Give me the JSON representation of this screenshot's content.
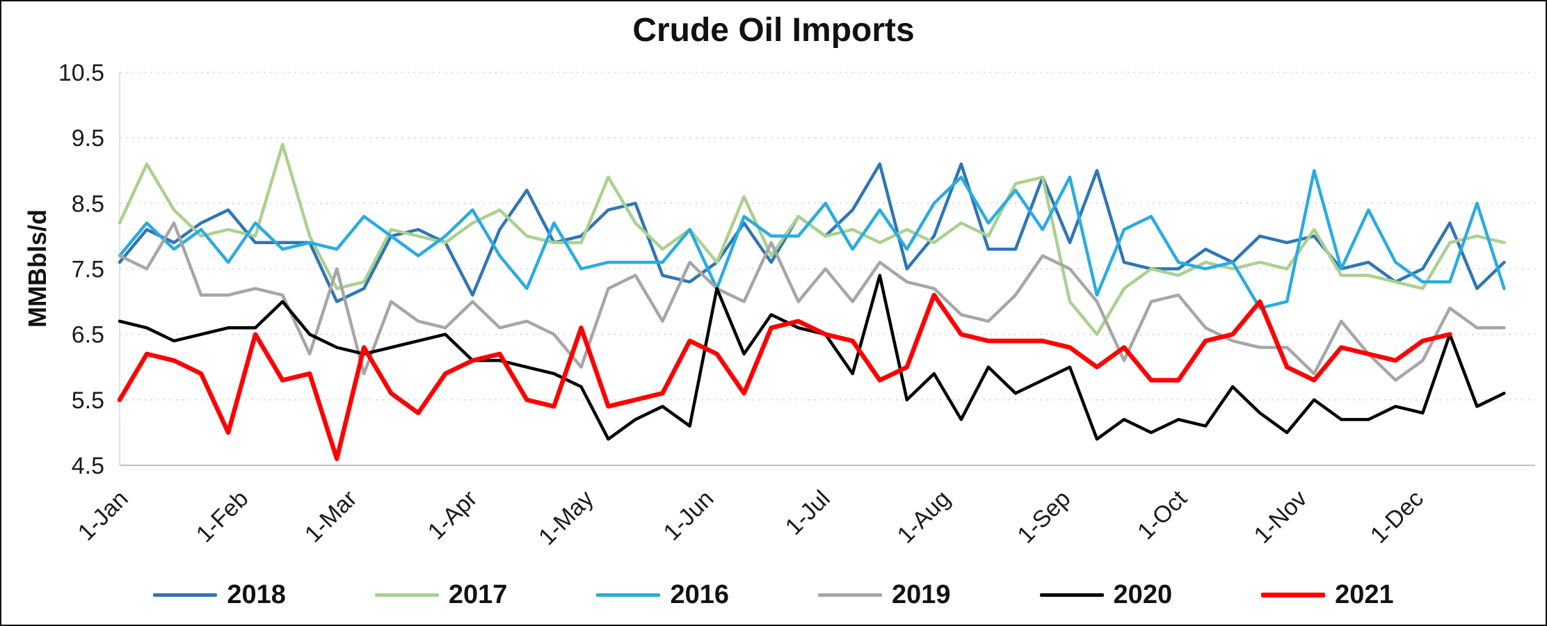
{
  "chart_data": {
    "type": "line",
    "title": "Crude Oil Imports",
    "ylabel": "MMBbls/d",
    "xlabel": "",
    "ylim": [
      4.5,
      10.5
    ],
    "ytick_step": 1.0,
    "ytick_labels": [
      "4.5",
      "5.5",
      "6.5",
      "7.5",
      "8.5",
      "9.5",
      "10.5"
    ],
    "grid": "horizontal-dotted",
    "legend_position": "bottom",
    "x_frequency": "weekly",
    "xticks": [
      {
        "label": "1-Jan",
        "day": 0
      },
      {
        "label": "1-Feb",
        "day": 31
      },
      {
        "label": "1-Mar",
        "day": 59
      },
      {
        "label": "1-Apr",
        "day": 90
      },
      {
        "label": "1-May",
        "day": 120
      },
      {
        "label": "1-Jun",
        "day": 151
      },
      {
        "label": "1-Jul",
        "day": 181
      },
      {
        "label": "1-Aug",
        "day": 212
      },
      {
        "label": "1-Sep",
        "day": 243
      },
      {
        "label": "1-Oct",
        "day": 273
      },
      {
        "label": "1-Nov",
        "day": 304
      },
      {
        "label": "1-Dec",
        "day": 334
      }
    ],
    "series": [
      {
        "name": "2018",
        "color": "#2E75B6",
        "line_width": 4.5,
        "start_week": 0,
        "values": [
          7.6,
          8.1,
          7.9,
          8.2,
          8.4,
          7.9,
          7.9,
          7.9,
          7.0,
          7.2,
          8.0,
          8.1,
          7.9,
          7.1,
          8.1,
          8.7,
          7.9,
          8.0,
          8.4,
          8.5,
          7.4,
          7.3,
          7.6,
          8.2,
          7.6,
          8.3,
          8.0,
          8.4,
          9.1,
          7.5,
          8.0,
          9.1,
          7.8,
          7.8,
          8.9,
          7.9,
          9.0,
          7.6,
          7.5,
          7.5,
          7.8,
          7.6,
          8.0,
          7.9,
          8.0,
          7.5,
          7.6,
          7.3,
          7.5,
          8.2,
          7.2,
          7.6
        ]
      },
      {
        "name": "2017",
        "color": "#A9D18E",
        "line_width": 4.5,
        "start_week": 0,
        "values": [
          8.2,
          9.1,
          8.4,
          8.0,
          8.1,
          8.0,
          9.4,
          8.0,
          7.2,
          7.3,
          8.1,
          8.0,
          7.9,
          8.2,
          8.4,
          8.0,
          7.9,
          7.9,
          8.9,
          8.2,
          7.8,
          8.1,
          7.6,
          8.6,
          7.7,
          8.3,
          8.0,
          8.1,
          7.9,
          8.1,
          7.9,
          8.2,
          8.0,
          8.8,
          8.9,
          7.0,
          6.5,
          7.2,
          7.5,
          7.4,
          7.6,
          7.5,
          7.6,
          7.5,
          8.1,
          7.4,
          7.4,
          7.3,
          7.2,
          7.9,
          8.0,
          7.9
        ]
      },
      {
        "name": "2016",
        "color": "#29ABE2",
        "line_width": 4.5,
        "start_week": 0,
        "values": [
          7.7,
          8.2,
          7.8,
          8.1,
          7.6,
          8.2,
          7.8,
          7.9,
          7.8,
          8.3,
          8.0,
          7.7,
          8.0,
          8.4,
          7.7,
          7.2,
          8.2,
          7.5,
          7.6,
          7.6,
          7.6,
          8.1,
          7.2,
          8.3,
          8.0,
          8.0,
          8.5,
          7.8,
          8.4,
          7.8,
          8.5,
          8.9,
          8.2,
          8.7,
          8.1,
          8.9,
          7.1,
          8.1,
          8.3,
          7.6,
          7.5,
          7.6,
          6.9,
          7.0,
          9.0,
          7.5,
          8.4,
          7.6,
          7.3,
          7.3,
          8.5,
          7.2
        ]
      },
      {
        "name": "2019",
        "color": "#A6A6A6",
        "line_width": 4.5,
        "start_week": 0,
        "values": [
          7.7,
          7.5,
          8.2,
          7.1,
          7.1,
          7.2,
          7.1,
          6.2,
          7.5,
          5.9,
          7.0,
          6.7,
          6.6,
          7.0,
          6.6,
          6.7,
          6.5,
          6.0,
          7.2,
          7.4,
          6.7,
          7.6,
          7.2,
          7.0,
          7.9,
          7.0,
          7.5,
          7.0,
          7.6,
          7.3,
          7.2,
          6.8,
          6.7,
          7.1,
          7.7,
          7.5,
          7.0,
          6.1,
          7.0,
          7.1,
          6.6,
          6.4,
          6.3,
          6.3,
          5.9,
          6.7,
          6.2,
          5.8,
          6.1,
          6.9,
          6.6,
          6.6
        ]
      },
      {
        "name": "2020",
        "color": "#000000",
        "line_width": 4.5,
        "start_week": 0,
        "values": [
          6.7,
          6.6,
          6.4,
          6.5,
          6.6,
          6.6,
          7.0,
          6.5,
          6.3,
          6.2,
          6.3,
          6.4,
          6.5,
          6.1,
          6.1,
          6.0,
          5.9,
          5.7,
          4.9,
          5.2,
          5.4,
          5.1,
          7.2,
          6.2,
          6.8,
          6.6,
          6.5,
          5.9,
          7.4,
          5.5,
          5.9,
          5.2,
          6.0,
          5.6,
          5.8,
          6.0,
          4.9,
          5.2,
          5.0,
          5.2,
          5.1,
          5.7,
          5.3,
          5.0,
          5.5,
          5.2,
          5.2,
          5.4,
          5.3,
          6.5,
          5.4,
          5.6
        ]
      },
      {
        "name": "2021",
        "color": "#FF0000",
        "line_width": 6.5,
        "start_week": 0,
        "values": [
          5.5,
          6.2,
          6.1,
          5.9,
          5.0,
          6.5,
          5.8,
          5.9,
          4.6,
          6.3,
          5.6,
          5.3,
          5.9,
          6.1,
          6.2,
          5.5,
          5.4,
          6.6,
          5.4,
          5.5,
          5.6,
          6.4,
          6.2,
          5.6,
          6.6,
          6.7,
          6.5,
          6.4,
          5.8,
          6.0,
          7.1,
          6.5,
          6.4,
          6.4,
          6.4,
          6.3,
          6.0,
          6.3,
          5.8,
          5.8,
          6.4,
          6.5,
          7.0,
          6.0,
          5.8,
          6.3,
          6.2,
          6.1,
          6.4,
          6.5
        ]
      }
    ]
  }
}
